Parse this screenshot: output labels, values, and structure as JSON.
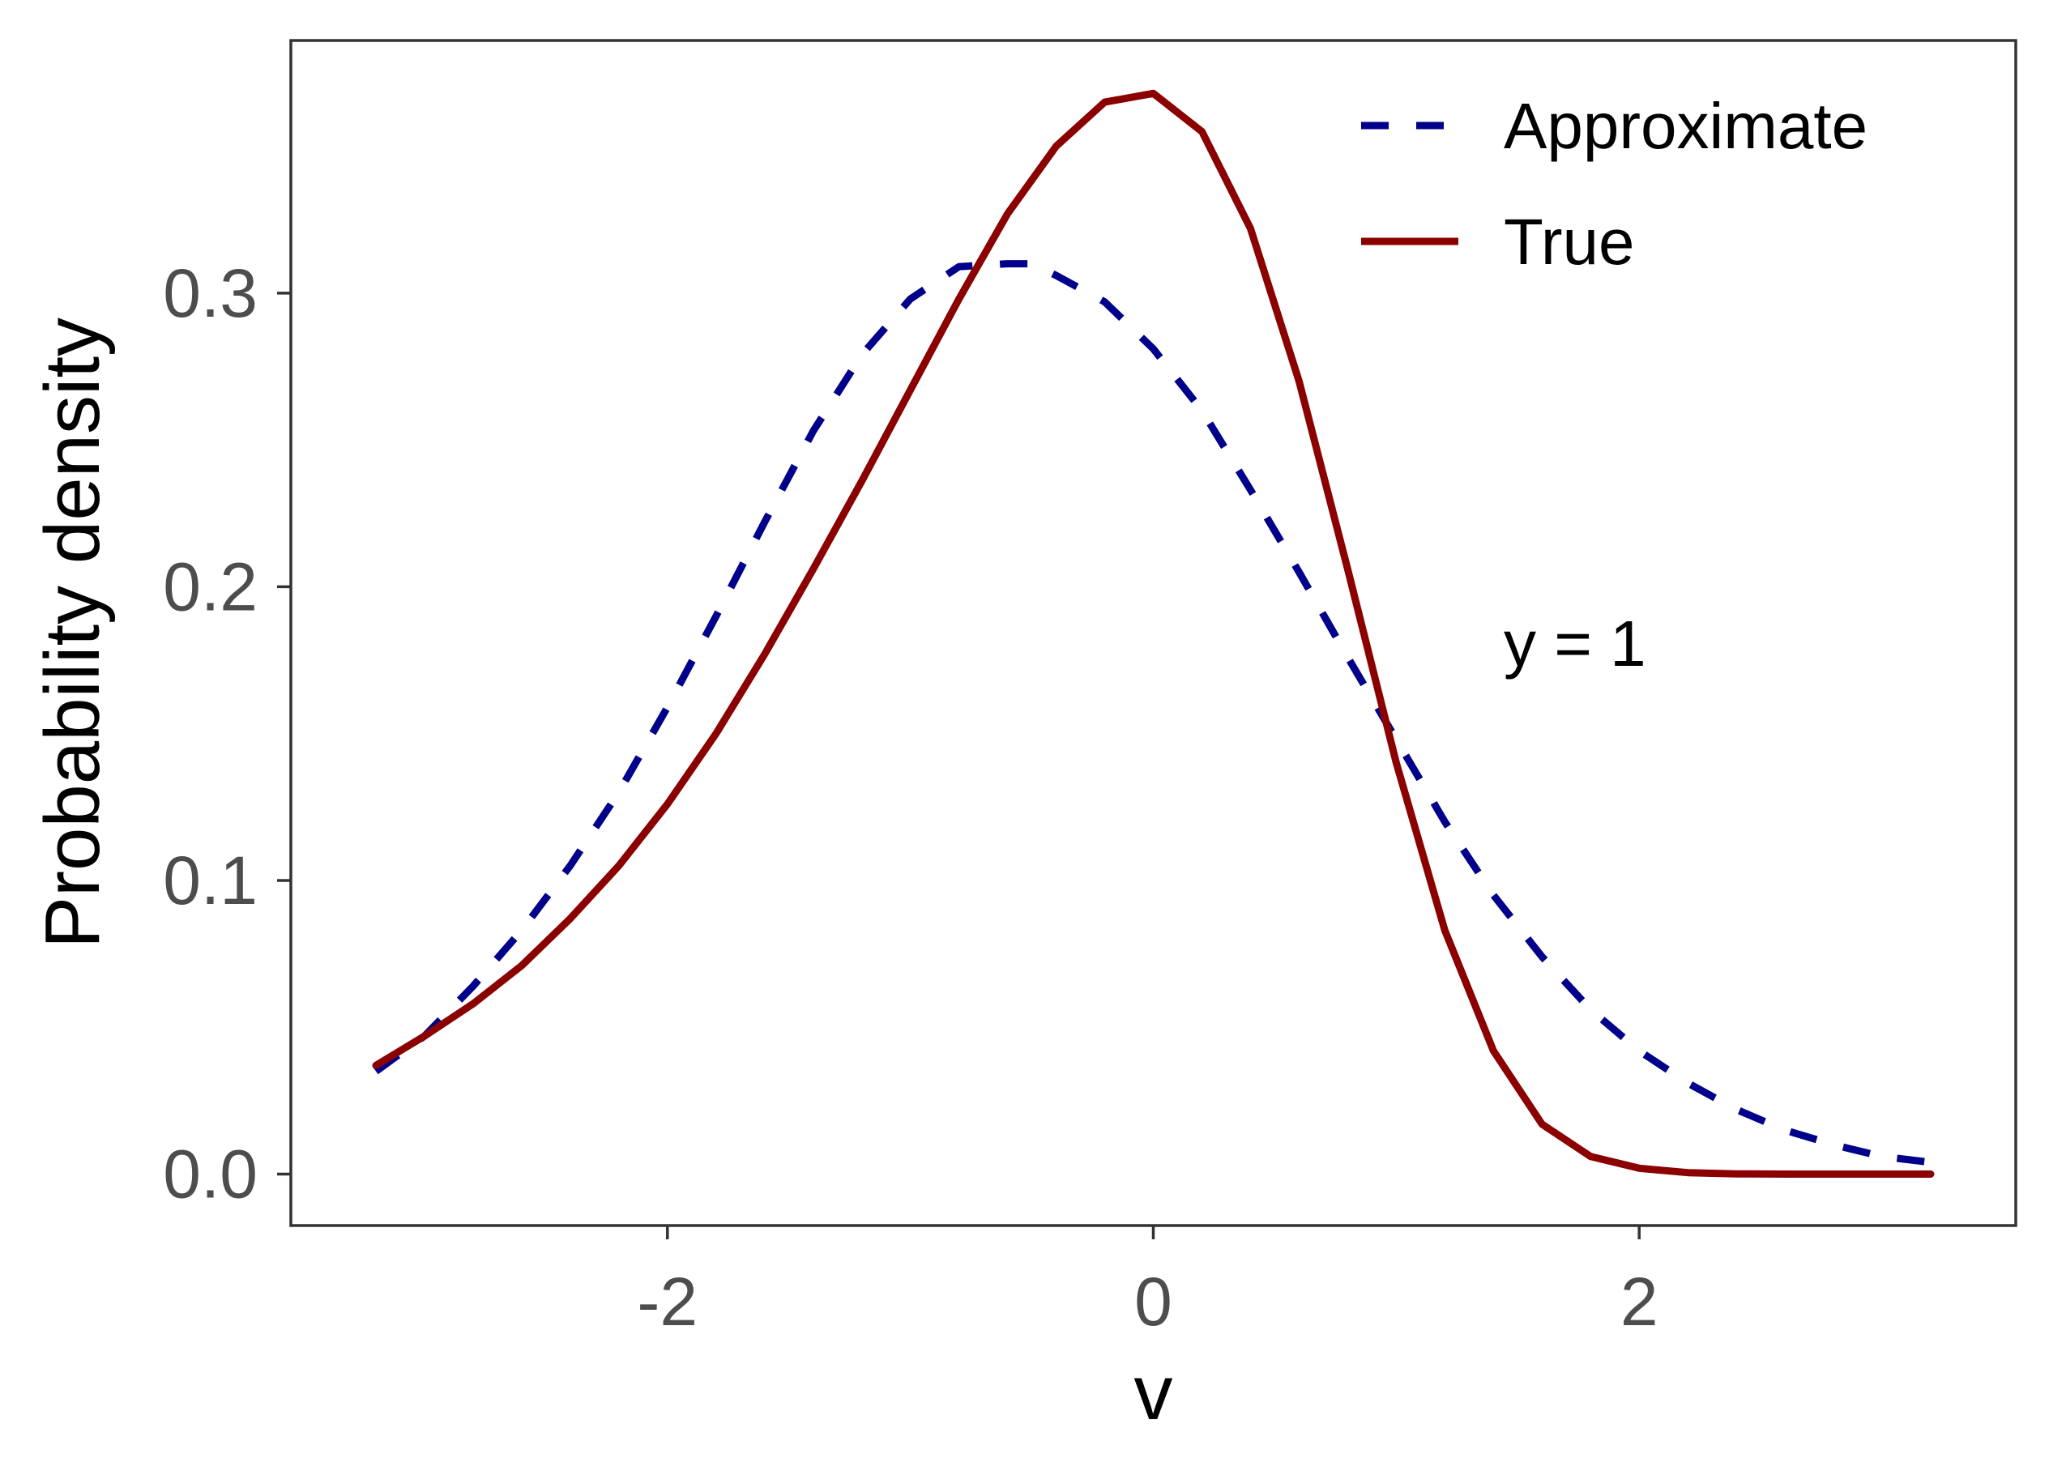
{
  "chart_data": {
    "type": "line",
    "title": "",
    "xlabel": "v",
    "ylabel": "Probability density",
    "xlim": [
      -3.55,
      3.55
    ],
    "ylim": [
      -0.0175,
      0.386
    ],
    "x_ticks": [
      -2,
      0,
      2
    ],
    "x_tick_labels": [
      "-2",
      "0",
      "2"
    ],
    "y_ticks": [
      0.0,
      0.1,
      0.2,
      0.3
    ],
    "y_tick_labels": [
      "0.0",
      "0.1",
      "0.2",
      "0.3"
    ],
    "grid": false,
    "legend_position": "top-right",
    "annotation": "y =  1",
    "series": [
      {
        "name": "Approximate",
        "color": "#00008B",
        "line_style": "dashed",
        "x": [
          -3.2,
          -3.0,
          -2.8,
          -2.6,
          -2.4,
          -2.2,
          -2.0,
          -1.8,
          -1.6,
          -1.4,
          -1.2,
          -1.0,
          -0.8,
          -0.6,
          -0.5,
          -0.4,
          -0.2,
          0.0,
          0.2,
          0.4,
          0.6,
          0.8,
          1.0,
          1.2,
          1.4,
          1.6,
          1.8,
          2.0,
          2.2,
          2.4,
          2.6,
          2.8,
          3.0,
          3.2
        ],
        "y": [
          0.035,
          0.047,
          0.064,
          0.083,
          0.105,
          0.13,
          0.159,
          0.19,
          0.222,
          0.253,
          0.279,
          0.298,
          0.309,
          0.31,
          0.31,
          0.306,
          0.297,
          0.281,
          0.26,
          0.233,
          0.205,
          0.176,
          0.148,
          0.12,
          0.095,
          0.074,
          0.056,
          0.042,
          0.031,
          0.022,
          0.015,
          0.01,
          0.006,
          0.004
        ]
      },
      {
        "name": "True",
        "color": "#8B0000",
        "line_style": "solid",
        "x": [
          -3.2,
          -3.0,
          -2.8,
          -2.6,
          -2.4,
          -2.2,
          -2.0,
          -1.8,
          -1.6,
          -1.4,
          -1.2,
          -1.0,
          -0.8,
          -0.6,
          -0.4,
          -0.2,
          0.0,
          0.2,
          0.4,
          0.6,
          0.8,
          1.0,
          1.2,
          1.4,
          1.6,
          1.8,
          2.0,
          2.2,
          2.4,
          2.6,
          2.8,
          3.0,
          3.2
        ],
        "y": [
          0.037,
          0.047,
          0.058,
          0.071,
          0.087,
          0.105,
          0.126,
          0.15,
          0.177,
          0.206,
          0.236,
          0.267,
          0.298,
          0.327,
          0.35,
          0.365,
          0.368,
          0.355,
          0.322,
          0.27,
          0.206,
          0.14,
          0.083,
          0.042,
          0.017,
          0.006,
          0.002,
          0.0005,
          0.0001,
          0.0,
          0.0,
          0.0,
          0.0
        ]
      }
    ]
  }
}
